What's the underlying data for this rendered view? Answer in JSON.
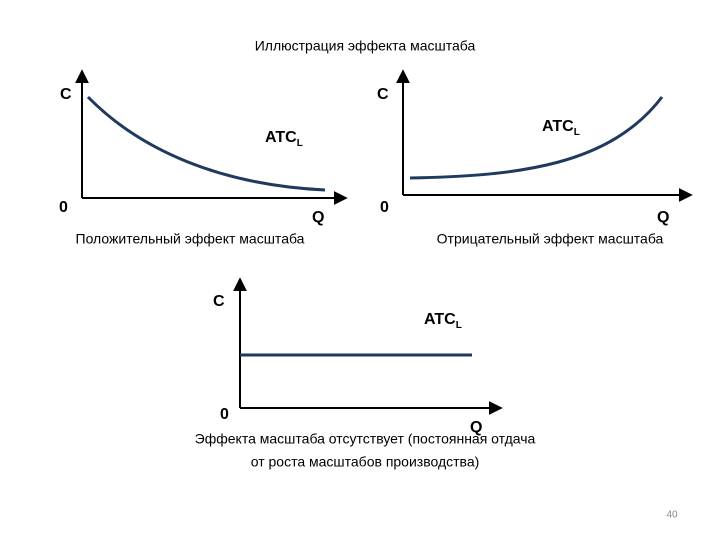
{
  "title": "Иллюстрация эффекта масштаба",
  "panels": [
    {
      "y_label": "C",
      "x_label": "Q",
      "origin": "0",
      "curve_label": "ATC",
      "curve_subscript": "L",
      "caption": [
        "Положительный эффект масштаба"
      ]
    },
    {
      "y_label": "C",
      "x_label": "Q",
      "origin": "0",
      "curve_label": "ATC",
      "curve_subscript": "L",
      "caption": [
        "Отрицательный эффект масштаба"
      ]
    },
    {
      "y_label": "C",
      "x_label": "Q",
      "origin": "0",
      "curve_label": "ATC",
      "curve_subscript": "L",
      "caption": [
        "Эффекта масштаба отсутствует (постоянная отдача",
        "от роста масштабов производства)"
      ]
    }
  ],
  "page_number": "40"
}
